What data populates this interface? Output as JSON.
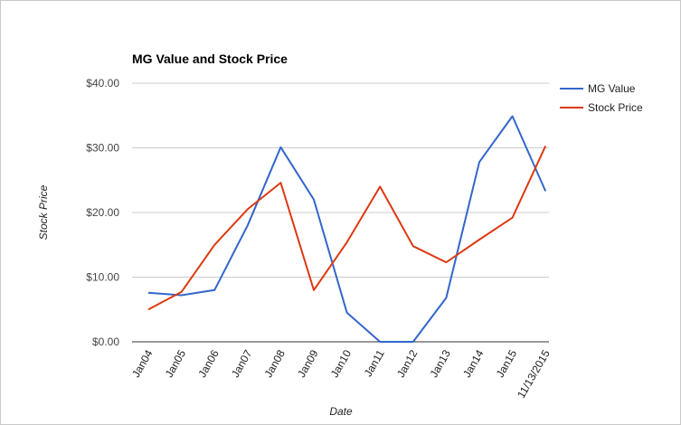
{
  "chart_data": {
    "type": "line",
    "title": "MG Value and Stock Price",
    "xlabel": "Date",
    "ylabel": "Stock Price",
    "categories": [
      "Jan04",
      "Jan05",
      "Jan06",
      "Jan07",
      "Jan08",
      "Jan09",
      "Jan10",
      "Jan11",
      "Jan12",
      "Jan13",
      "Jan14",
      "Jan15",
      "11/13/2015"
    ],
    "y_ticks": [
      "$0.00",
      "$10.00",
      "$20.00",
      "$30.00",
      "$40.00"
    ],
    "ylim": [
      0,
      40
    ],
    "grid": true,
    "legend": "right",
    "series": [
      {
        "name": "MG Value",
        "color": "#3366cc",
        "values": [
          7.6,
          7.2,
          8.0,
          18.0,
          30.1,
          22.0,
          4.5,
          0.0,
          0.0,
          6.8,
          27.8,
          34.9,
          23.3
        ]
      },
      {
        "name": "Stock Price",
        "color": "#dc3912",
        "values": [
          5.0,
          7.7,
          15.0,
          20.5,
          24.6,
          8.0,
          15.4,
          24.0,
          14.8,
          12.3,
          15.8,
          19.2,
          30.3
        ]
      }
    ]
  }
}
